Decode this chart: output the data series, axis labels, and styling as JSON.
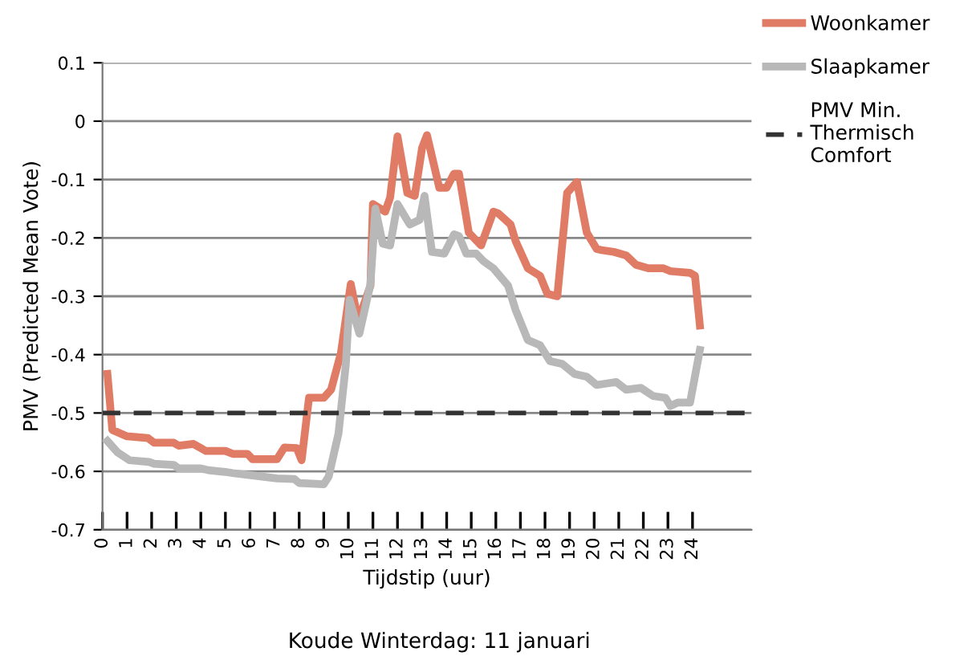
{
  "chart_data": {
    "type": "line",
    "title": "Koude Winterdag: 11 januari",
    "xlabel": "Tijdstip (uur)",
    "ylabel": "PMV (Predicted Mean Vote)",
    "xlim": [
      0,
      26.4
    ],
    "xticks": [
      0,
      1,
      2,
      3,
      4,
      5,
      6,
      7,
      8,
      9,
      10,
      11,
      12,
      13,
      14,
      15,
      16,
      17,
      18,
      19,
      20,
      21,
      22,
      23,
      24
    ],
    "ylim": [
      -0.7,
      0.1
    ],
    "yticks": [
      {
        "value": -0.7,
        "label": "-0.7"
      },
      {
        "value": -0.6,
        "label": "-0.6"
      },
      {
        "value": -0.5,
        "label": "-0.5"
      },
      {
        "value": -0.4,
        "label": "-0.4"
      },
      {
        "value": -0.3,
        "label": "-0.3"
      },
      {
        "value": -0.2,
        "label": "-0.2"
      },
      {
        "value": -0.1,
        "label": "-0.1"
      },
      {
        "value": 0,
        "label": "0"
      },
      {
        "value": 0.1,
        "label": "0.1"
      }
    ],
    "grid": "y",
    "legend": "top right",
    "line_style": "solid",
    "marker": "none",
    "series": [
      {
        "name": "Woonkamer",
        "color": "#e07b65",
        "x": [
          0.2,
          0.4,
          1.0,
          1.85,
          2.1,
          2.9,
          3.1,
          3.7,
          4.2,
          5.0,
          5.3,
          5.9,
          6.1,
          7.1,
          7.4,
          7.9,
          8.1,
          8.4,
          9.0,
          9.3,
          9.7,
          10.1,
          10.4,
          10.9,
          11.0,
          11.5,
          11.7,
          12.0,
          12.4,
          12.7,
          13.0,
          13.2,
          13.7,
          14.0,
          14.3,
          14.5,
          14.9,
          15.4,
          15.9,
          16.1,
          16.6,
          16.8,
          17.3,
          17.8,
          18.1,
          18.5,
          18.9,
          19.3,
          19.7,
          20.1,
          20.3,
          20.8,
          21.3,
          21.7,
          22.2,
          22.8,
          23.1,
          23.9,
          24.1,
          24.3
        ],
        "values": [
          -0.433,
          -0.529,
          -0.54,
          -0.543,
          -0.551,
          -0.551,
          -0.556,
          -0.553,
          -0.565,
          -0.565,
          -0.57,
          -0.57,
          -0.579,
          -0.579,
          -0.559,
          -0.56,
          -0.581,
          -0.474,
          -0.474,
          -0.46,
          -0.397,
          -0.279,
          -0.342,
          -0.282,
          -0.142,
          -0.155,
          -0.131,
          -0.026,
          -0.123,
          -0.128,
          -0.046,
          -0.024,
          -0.114,
          -0.114,
          -0.09,
          -0.09,
          -0.191,
          -0.213,
          -0.155,
          -0.158,
          -0.177,
          -0.205,
          -0.252,
          -0.265,
          -0.296,
          -0.3,
          -0.123,
          -0.104,
          -0.191,
          -0.219,
          -0.221,
          -0.224,
          -0.23,
          -0.246,
          -0.252,
          -0.252,
          -0.257,
          -0.26,
          -0.265,
          -0.35
        ]
      },
      {
        "name": "Slaapkamer",
        "color": "#b8b8b8",
        "x": [
          0.2,
          0.6,
          1.1,
          1.9,
          2.1,
          2.9,
          3.1,
          4.0,
          4.3,
          5.0,
          5.3,
          6.1,
          7.1,
          7.8,
          8.0,
          9.0,
          9.2,
          9.6,
          9.9,
          10.05,
          10.45,
          10.9,
          11.1,
          11.4,
          11.7,
          12.0,
          12.5,
          12.9,
          13.1,
          13.4,
          13.9,
          14.3,
          14.5,
          14.8,
          15.2,
          15.5,
          15.9,
          16.5,
          16.8,
          17.3,
          17.8,
          18.2,
          18.7,
          19.2,
          19.7,
          20.1,
          20.9,
          21.3,
          21.9,
          22.4,
          22.9,
          23.1,
          23.4,
          23.9,
          24.3
        ],
        "values": [
          -0.548,
          -0.567,
          -0.581,
          -0.584,
          -0.587,
          -0.589,
          -0.595,
          -0.595,
          -0.598,
          -0.601,
          -0.603,
          -0.607,
          -0.612,
          -0.613,
          -0.62,
          -0.622,
          -0.609,
          -0.535,
          -0.416,
          -0.306,
          -0.364,
          -0.279,
          -0.15,
          -0.21,
          -0.213,
          -0.142,
          -0.177,
          -0.169,
          -0.128,
          -0.224,
          -0.227,
          -0.194,
          -0.197,
          -0.227,
          -0.227,
          -0.24,
          -0.252,
          -0.282,
          -0.323,
          -0.375,
          -0.384,
          -0.411,
          -0.416,
          -0.433,
          -0.438,
          -0.452,
          -0.447,
          -0.46,
          -0.457,
          -0.471,
          -0.474,
          -0.488,
          -0.482,
          -0.482,
          -0.392
        ]
      }
    ],
    "ref_lines": [
      {
        "axis": "y",
        "value": -0.5,
        "label": "PMV Min.\nThermisch\nComfort",
        "color": "#333333",
        "line_style": "dashed"
      }
    ]
  }
}
